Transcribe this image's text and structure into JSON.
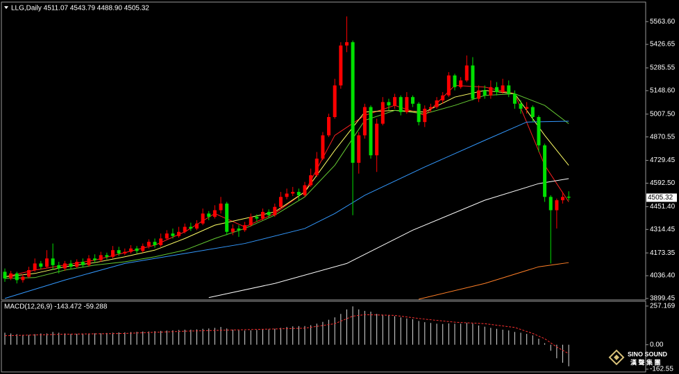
{
  "chart_data": [
    {
      "type": "candlestick",
      "title": "LLG,Daily  4511.07 4543.79 4488.90 4505.32",
      "up_color": "#ff0000",
      "down_color": "#00e000",
      "open": [
        4060,
        4020,
        4050,
        4010,
        4030,
        4070,
        4110,
        4090,
        4140,
        4100,
        4080,
        4110,
        4090,
        4120,
        4100,
        4140,
        4130,
        4160,
        4150,
        4190,
        4170,
        4180,
        4200,
        4185,
        4215,
        4240,
        4220,
        4260,
        4290,
        4275,
        4300,
        4330,
        4320,
        4350,
        4410,
        4390,
        4430,
        4470,
        4300,
        4320,
        4310,
        4340,
        4390,
        4380,
        4420,
        4400,
        4450,
        4510,
        4530,
        4540,
        4520,
        4580,
        4640,
        4740,
        4880,
        4990,
        5180,
        5420,
        5440,
        4715,
        4880,
        5050,
        4760,
        4950,
        5080,
        5060,
        5110,
        5020,
        5110,
        5070,
        4960,
        5040,
        5050,
        5090,
        5120,
        5240,
        5170,
        5210,
        5300,
        5100,
        5150,
        5120,
        5170,
        5140,
        5180,
        5130,
        5070,
        5040,
        5050,
        4990,
        4820,
        4510,
        4430,
        4490,
        4511.07
      ],
      "high": [
        4080,
        4065,
        4060,
        4045,
        4090,
        4140,
        4125,
        4190,
        4230,
        4120,
        4125,
        4130,
        4135,
        4140,
        4160,
        4165,
        4180,
        4175,
        4215,
        4210,
        4200,
        4220,
        4215,
        4230,
        4255,
        4260,
        4290,
        4310,
        4320,
        4330,
        4350,
        4355,
        4370,
        4440,
        4425,
        4460,
        4510,
        4480,
        4345,
        4340,
        4360,
        4410,
        4405,
        4440,
        4435,
        4470,
        4540,
        4560,
        4570,
        4560,
        4600,
        4680,
        4780,
        4900,
        5010,
        5220,
        5440,
        5595,
        5450,
        4900,
        5070,
        5060,
        4980,
        5110,
        5100,
        5130,
        5120,
        5140,
        5120,
        5080,
        5060,
        5070,
        5110,
        5140,
        5260,
        5250,
        5230,
        5360,
        5350,
        5180,
        5180,
        5210,
        5200,
        5220,
        5210,
        5150,
        5090,
        5080,
        5060,
        5000,
        4830,
        4520,
        4500,
        4540,
        4543.79
      ],
      "low": [
        4000,
        4010,
        3990,
        3995,
        4020,
        4060,
        4075,
        4080,
        4070,
        4050,
        4065,
        4075,
        4080,
        4085,
        4090,
        4115,
        4120,
        4135,
        4140,
        4155,
        4160,
        4170,
        4170,
        4175,
        4200,
        4205,
        4210,
        4250,
        4260,
        4265,
        4290,
        4305,
        4310,
        4340,
        4370,
        4380,
        4410,
        4280,
        4280,
        4270,
        4300,
        4330,
        4360,
        4370,
        4385,
        4390,
        4440,
        4495,
        4515,
        4490,
        4510,
        4570,
        4630,
        4730,
        4870,
        4980,
        5160,
        5380,
        4400,
        4650,
        4860,
        4740,
        4660,
        4940,
        5030,
        5040,
        5000,
        5010,
        5050,
        4940,
        4930,
        5020,
        5040,
        5070,
        5110,
        5150,
        5160,
        5200,
        5090,
        5080,
        5100,
        5100,
        5120,
        5130,
        5110,
        5040,
        5010,
        5010,
        4960,
        4780,
        4480,
        4110,
        4320,
        4470,
        4488.9
      ],
      "close": [
        4020,
        4050,
        4010,
        4030,
        4070,
        4110,
        4090,
        4140,
        4100,
        4080,
        4110,
        4090,
        4120,
        4100,
        4140,
        4130,
        4160,
        4150,
        4190,
        4170,
        4180,
        4200,
        4185,
        4215,
        4240,
        4220,
        4260,
        4290,
        4275,
        4300,
        4330,
        4320,
        4350,
        4410,
        4390,
        4430,
        4470,
        4300,
        4320,
        4310,
        4340,
        4390,
        4380,
        4420,
        4400,
        4450,
        4510,
        4530,
        4540,
        4520,
        4580,
        4640,
        4740,
        4880,
        4990,
        5180,
        5420,
        5440,
        4715,
        4880,
        5050,
        4760,
        4950,
        5080,
        5060,
        5110,
        5020,
        5110,
        5070,
        4960,
        5040,
        5050,
        5090,
        5120,
        5240,
        5170,
        5210,
        5300,
        5100,
        5150,
        5120,
        5170,
        5140,
        5180,
        5130,
        5070,
        5040,
        5050,
        4990,
        4820,
        4510,
        4430,
        4490,
        4510,
        4505.32
      ],
      "lines": [
        {
          "color": "#ff2020",
          "x": [
            0,
            5,
            10,
            15,
            20,
            25,
            30,
            35,
            40,
            45,
            50,
            55,
            60,
            65,
            70,
            75,
            80,
            85,
            90,
            94
          ],
          "values": [
            4030,
            4070,
            4100,
            4130,
            4175,
            4220,
            4300,
            4410,
            4330,
            4410,
            4540,
            4880,
            5000,
            5060,
            5000,
            5180,
            5170,
            5130,
            4700,
            4480
          ]
        },
        {
          "color": "#ffff66",
          "x": [
            0,
            5,
            10,
            15,
            20,
            25,
            30,
            35,
            40,
            45,
            50,
            55,
            60,
            65,
            70,
            75,
            80,
            85,
            90,
            94
          ],
          "values": [
            4030,
            4050,
            4090,
            4115,
            4150,
            4190,
            4260,
            4340,
            4380,
            4420,
            4540,
            4790,
            5020,
            5030,
            5020,
            5110,
            5150,
            5130,
            4880,
            4700
          ]
        },
        {
          "color": "#66cc33",
          "x": [
            0,
            5,
            10,
            15,
            20,
            25,
            30,
            35,
            40,
            45,
            50,
            55,
            60,
            65,
            70,
            75,
            80,
            85,
            90,
            94
          ],
          "values": [
            4020,
            4025,
            4070,
            4100,
            4120,
            4150,
            4190,
            4260,
            4320,
            4400,
            4510,
            4700,
            4970,
            5030,
            5010,
            5060,
            5120,
            5130,
            5060,
            4950
          ]
        },
        {
          "color": "#3399ff",
          "x": [
            0,
            10,
            20,
            30,
            40,
            50,
            55,
            60,
            70,
            80,
            87,
            94
          ],
          "values": [
            3900,
            4010,
            4110,
            4170,
            4230,
            4320,
            4410,
            4520,
            4690,
            4850,
            4960,
            4965
          ]
        },
        {
          "color": "#ffffff",
          "x": [
            34,
            45,
            57,
            68,
            80,
            89,
            94
          ],
          "values": [
            3905,
            3990,
            4110,
            4310,
            4490,
            4590,
            4620
          ]
        },
        {
          "color": "#ff7f27",
          "x": [
            69,
            80,
            89,
            94
          ],
          "values": [
            3895,
            3990,
            4090,
            4115
          ]
        }
      ],
      "ylim": [
        3891,
        5681
      ],
      "yticks": [
        {
          "value": 5563.6,
          "label": "5563.60"
        },
        5426.65,
        5285.55,
        {
          "value": 5148.6,
          "label": "5148.60"
        },
        {
          "value": 5007.5,
          "label": "5007.50"
        },
        4870.55,
        4729.45,
        {
          "value": 4592.5,
          "label": "4592.50"
        },
        {
          "value": 4451.4,
          "label": "4451.40"
        },
        4314.45,
        4173.35,
        {
          "value": 4036.4,
          "label": "4036.40"
        },
        3899.45
      ]
    },
    {
      "type": "bar",
      "title": "MACD(12,26,9) -143.472 -59.288",
      "color": "#dddddd",
      "values": [
        80,
        75,
        70,
        65,
        65,
        70,
        75,
        75,
        85,
        80,
        75,
        72,
        72,
        74,
        74,
        76,
        76,
        78,
        80,
        82,
        82,
        84,
        86,
        88,
        88,
        90,
        92,
        94,
        96,
        98,
        100,
        100,
        102,
        106,
        108,
        112,
        118,
        108,
        100,
        96,
        94,
        96,
        98,
        100,
        102,
        106,
        112,
        118,
        122,
        124,
        124,
        130,
        140,
        152,
        166,
        182,
        205,
        235,
        255,
        235,
        225,
        220,
        205,
        200,
        195,
        190,
        182,
        175,
        170,
        158,
        150,
        145,
        140,
        138,
        142,
        140,
        140,
        145,
        140,
        128,
        120,
        112,
        106,
        100,
        95,
        85,
        80,
        72,
        62,
        40,
        10,
        -40,
        -90,
        -120,
        -143.472
      ],
      "signal": {
        "color": "#ff3030",
        "x": [
          0,
          10,
          20,
          30,
          40,
          50,
          55,
          58,
          60,
          65,
          70,
          75,
          80,
          85,
          88,
          90,
          92,
          94
        ],
        "values": [
          60,
          70,
          75,
          90,
          100,
          110,
          140,
          190,
          200,
          195,
          170,
          150,
          140,
          115,
          75,
          40,
          -15,
          -59.288
        ]
      },
      "ylim": [
        -181,
        289
      ],
      "yticks": [
        257.169,
        {
          "value": 0,
          "label": "0.00"
        },
        -162.55
      ]
    }
  ],
  "watermark": {
    "brand": "SINO SOUND",
    "chinese": "漢 聲 集 團"
  }
}
